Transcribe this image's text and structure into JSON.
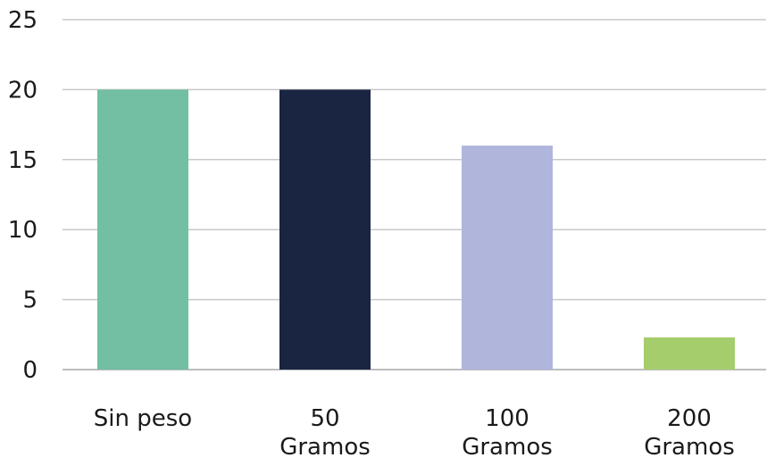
{
  "chart_data": {
    "type": "bar",
    "title": "",
    "xlabel": "",
    "ylabel": "",
    "categories": [
      "Sin peso",
      "50 Gramos",
      "100 Gramos",
      "200 Gramos"
    ],
    "category_lines": [
      [
        "Sin peso"
      ],
      [
        "50",
        "Gramos"
      ],
      [
        "100",
        "Gramos"
      ],
      [
        "200",
        "Gramos"
      ]
    ],
    "values": [
      20,
      20,
      16,
      2.3
    ],
    "bar_colors": [
      "#72bfa3",
      "#1a2542",
      "#b0b5dc",
      "#a6cd6c"
    ],
    "ylim": [
      0,
      25
    ],
    "yticks": [
      0,
      5,
      10,
      15,
      20,
      25
    ],
    "grid": true,
    "legend": "none"
  }
}
